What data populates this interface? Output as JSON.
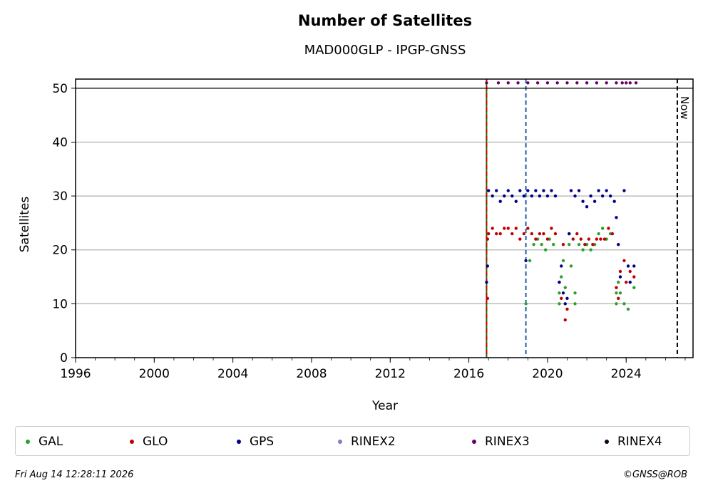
{
  "chart_data": {
    "type": "scatter",
    "title": "Number of Satellites",
    "subtitle": "MAD000GLP - IPGP-GNSS",
    "xlabel": "Year",
    "ylabel": "Satellites",
    "xlim": [
      1996,
      2027.4
    ],
    "ylim": [
      0,
      51.7
    ],
    "x_ticks": [
      "1996",
      "2000",
      "2004",
      "2008",
      "2012",
      "2016",
      "2020",
      "2024"
    ],
    "y_ticks": [
      "0",
      "10",
      "20",
      "30",
      "40",
      "50"
    ],
    "grid": "y",
    "now_label": "Now",
    "now_x": 2026.6,
    "vertical_markers": [
      {
        "x": 2016.9,
        "color": "#008000",
        "style": "solid"
      },
      {
        "x": 2016.9,
        "color": "#cc0000",
        "style": "dashed"
      },
      {
        "x": 2018.9,
        "color": "#1f5fa8",
        "style": "dashed"
      }
    ],
    "reference_line_y": 50,
    "legend_position": "bottom",
    "series": [
      {
        "name": "GAL",
        "color": "#2ca02c",
        "points": [
          [
            2018.9,
            10
          ],
          [
            2019.1,
            18
          ],
          [
            2019.3,
            21
          ],
          [
            2019.5,
            22
          ],
          [
            2019.7,
            21
          ],
          [
            2019.9,
            20
          ],
          [
            2020.1,
            22
          ],
          [
            2020.3,
            21
          ],
          [
            2020.6,
            10
          ],
          [
            2020.6,
            12
          ],
          [
            2020.7,
            15
          ],
          [
            2020.8,
            18
          ],
          [
            2020.9,
            13
          ],
          [
            2021.1,
            21
          ],
          [
            2021.2,
            17
          ],
          [
            2021.4,
            10
          ],
          [
            2021.4,
            12
          ],
          [
            2021.6,
            21
          ],
          [
            2021.8,
            20
          ],
          [
            2022.0,
            21
          ],
          [
            2022.2,
            20
          ],
          [
            2022.4,
            21
          ],
          [
            2022.6,
            23
          ],
          [
            2022.8,
            24
          ],
          [
            2023.0,
            22
          ],
          [
            2023.2,
            23
          ],
          [
            2023.5,
            10
          ],
          [
            2023.5,
            12
          ],
          [
            2023.6,
            14
          ],
          [
            2023.7,
            12
          ],
          [
            2023.9,
            10
          ],
          [
            2024.1,
            9
          ],
          [
            2024.4,
            13
          ]
        ]
      },
      {
        "name": "GLO",
        "color": "#c00000",
        "points": [
          [
            2016.95,
            11
          ],
          [
            2016.95,
            22
          ],
          [
            2017.0,
            23
          ],
          [
            2017.2,
            24
          ],
          [
            2017.4,
            23
          ],
          [
            2017.6,
            23
          ],
          [
            2017.8,
            24
          ],
          [
            2018.0,
            24
          ],
          [
            2018.2,
            23
          ],
          [
            2018.4,
            24
          ],
          [
            2018.6,
            22
          ],
          [
            2018.8,
            23
          ],
          [
            2019.0,
            24
          ],
          [
            2019.2,
            23
          ],
          [
            2019.4,
            22
          ],
          [
            2019.6,
            23
          ],
          [
            2019.8,
            23
          ],
          [
            2020.0,
            22
          ],
          [
            2020.2,
            24
          ],
          [
            2020.4,
            23
          ],
          [
            2020.6,
            14
          ],
          [
            2020.7,
            11
          ],
          [
            2020.8,
            21
          ],
          [
            2020.9,
            7
          ],
          [
            2021.0,
            9
          ],
          [
            2021.1,
            23
          ],
          [
            2021.3,
            22
          ],
          [
            2021.5,
            23
          ],
          [
            2021.7,
            22
          ],
          [
            2021.9,
            21
          ],
          [
            2022.1,
            22
          ],
          [
            2022.3,
            21
          ],
          [
            2022.5,
            22
          ],
          [
            2022.7,
            22
          ],
          [
            2022.9,
            22
          ],
          [
            2023.1,
            24
          ],
          [
            2023.3,
            23
          ],
          [
            2023.5,
            13
          ],
          [
            2023.6,
            11
          ],
          [
            2023.7,
            16
          ],
          [
            2023.9,
            18
          ],
          [
            2024.0,
            14
          ],
          [
            2024.2,
            16
          ],
          [
            2024.4,
            15
          ]
        ]
      },
      {
        "name": "GPS",
        "color": "#00008b",
        "points": [
          [
            2016.9,
            14
          ],
          [
            2016.95,
            17
          ],
          [
            2017.0,
            31
          ],
          [
            2017.2,
            30
          ],
          [
            2017.4,
            31
          ],
          [
            2017.6,
            29
          ],
          [
            2017.8,
            30
          ],
          [
            2018.0,
            31
          ],
          [
            2018.2,
            30
          ],
          [
            2018.4,
            29
          ],
          [
            2018.6,
            31
          ],
          [
            2018.8,
            30
          ],
          [
            2018.9,
            18
          ],
          [
            2019.0,
            31
          ],
          [
            2019.2,
            30
          ],
          [
            2019.4,
            31
          ],
          [
            2019.6,
            30
          ],
          [
            2019.8,
            31
          ],
          [
            2020.0,
            30
          ],
          [
            2020.2,
            31
          ],
          [
            2020.4,
            30
          ],
          [
            2020.6,
            14
          ],
          [
            2020.7,
            17
          ],
          [
            2020.8,
            12
          ],
          [
            2020.9,
            10
          ],
          [
            2021.0,
            11
          ],
          [
            2021.1,
            23
          ],
          [
            2021.2,
            31
          ],
          [
            2021.4,
            30
          ],
          [
            2021.6,
            31
          ],
          [
            2021.8,
            29
          ],
          [
            2022.0,
            28
          ],
          [
            2022.2,
            30
          ],
          [
            2022.4,
            29
          ],
          [
            2022.6,
            31
          ],
          [
            2022.8,
            30
          ],
          [
            2023.0,
            31
          ],
          [
            2023.2,
            30
          ],
          [
            2023.4,
            29
          ],
          [
            2023.5,
            26
          ],
          [
            2023.6,
            21
          ],
          [
            2023.7,
            15
          ],
          [
            2023.9,
            31
          ],
          [
            2024.1,
            17
          ],
          [
            2024.2,
            14
          ],
          [
            2024.4,
            17
          ]
        ]
      },
      {
        "name": "RINEX2",
        "color": "#8080c0",
        "points": []
      },
      {
        "name": "RINEX3",
        "color": "#6a006a",
        "points": [
          [
            2016.9,
            51
          ],
          [
            2017.5,
            51
          ],
          [
            2018.0,
            51
          ],
          [
            2018.5,
            51
          ],
          [
            2019.0,
            51
          ],
          [
            2019.5,
            51
          ],
          [
            2020.0,
            51
          ],
          [
            2020.5,
            51
          ],
          [
            2021.0,
            51
          ],
          [
            2021.5,
            51
          ],
          [
            2022.0,
            51
          ],
          [
            2022.5,
            51
          ],
          [
            2023.0,
            51
          ],
          [
            2023.5,
            51
          ],
          [
            2023.8,
            51
          ],
          [
            2024.0,
            51
          ],
          [
            2024.2,
            51
          ],
          [
            2024.5,
            51
          ]
        ]
      },
      {
        "name": "RINEX4",
        "color": "#1a0020",
        "points": []
      }
    ]
  },
  "footer": {
    "timestamp": "Fri Aug 14 12:28:11 2026",
    "credit": "©GNSS@ROB"
  }
}
